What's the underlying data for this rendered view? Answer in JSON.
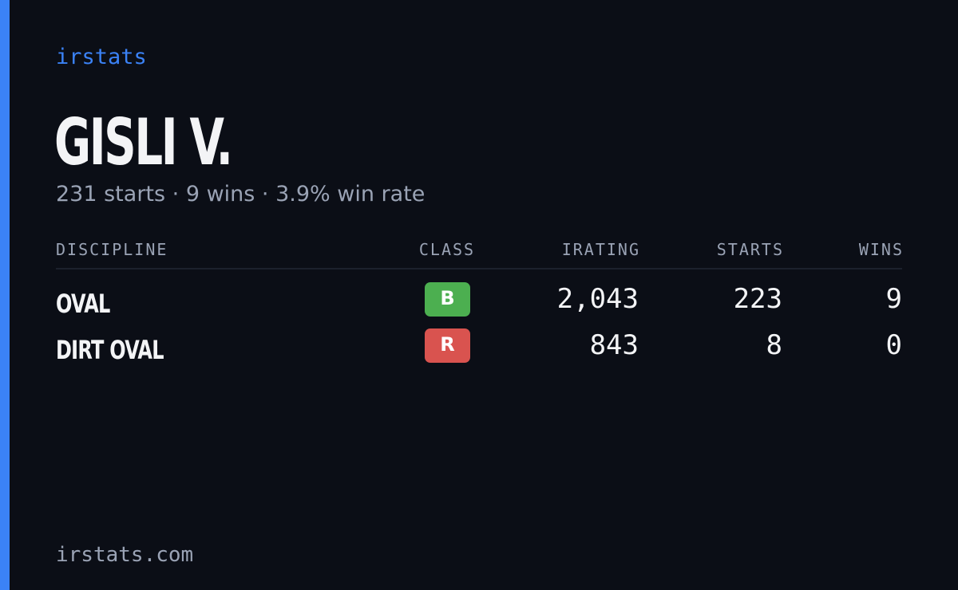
{
  "header": {
    "brand": "irstats",
    "name": "GISLI V.",
    "summary": "231 starts · 9 wins · 3.9% win rate"
  },
  "table": {
    "columns": [
      "DISCIPLINE",
      "CLASS",
      "IRATING",
      "STARTS",
      "WINS"
    ],
    "rows": [
      {
        "discipline": "OVAL",
        "class": "B",
        "class_color": "#4caf50",
        "irating": "2,043",
        "starts": "223",
        "wins": "9"
      },
      {
        "discipline": "DIRT OVAL",
        "class": "R",
        "class_color": "#d9534f",
        "irating": "843",
        "starts": "8",
        "wins": "0"
      }
    ]
  },
  "footer": {
    "site": "irstats.com"
  }
}
